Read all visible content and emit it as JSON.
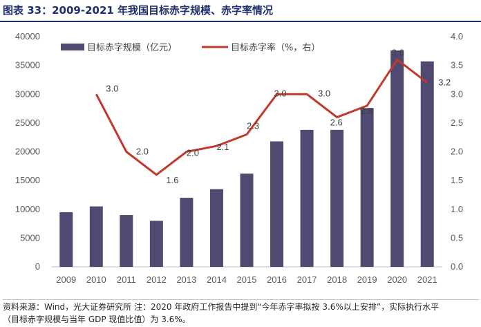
{
  "header": {
    "title": "图表 33：2009-2021 年我国目标赤字规模、赤字率情况"
  },
  "footer": {
    "line1": "资料来源：Wind，光大证券研究所  注：2020 年政府工作报告中提到“今年赤字率拟按 3.6%以上安排”，实际执行水平",
    "line2": "（目标赤字规模与当年 GDP 现值比值）为 3.6%。"
  },
  "colors": {
    "bar": "#4f4a72",
    "line": "#c0392b",
    "title": "#1f2f6b"
  },
  "chart_data": {
    "type": "bar+line",
    "categories": [
      "2009",
      "2010",
      "2011",
      "2012",
      "2013",
      "2014",
      "2015",
      "2016",
      "2017",
      "2018",
      "2019",
      "2020",
      "2021"
    ],
    "series": [
      {
        "name": "目标赤字规模（亿元）",
        "type": "bar",
        "axis": "left",
        "values": [
          9500,
          10500,
          9000,
          8000,
          12000,
          13500,
          16200,
          21800,
          23800,
          23800,
          27600,
          37600,
          35700
        ]
      },
      {
        "name": "目标赤字率（%，右）",
        "type": "line",
        "axis": "right",
        "values": [
          null,
          3.0,
          2.0,
          1.6,
          2.0,
          2.1,
          2.3,
          3.0,
          3.0,
          2.6,
          2.8,
          3.6,
          3.2
        ],
        "labels": [
          "",
          "3.0",
          "2.0",
          "1.6",
          "2.0",
          "2.1",
          "2.3",
          "3.0",
          "3.0",
          "2.6",
          "2.8",
          "3.6",
          "3.2"
        ]
      }
    ],
    "left_axis": {
      "ylim": [
        0,
        40000
      ],
      "ticks": [
        "0",
        "5000",
        "10000",
        "15000",
        "20000",
        "25000",
        "30000",
        "35000",
        "40000"
      ]
    },
    "right_axis": {
      "ylim": [
        0,
        4.0
      ],
      "ticks": [
        "0.0",
        "0.5",
        "1.0",
        "1.5",
        "2.0",
        "2.5",
        "3.0",
        "3.5",
        "4.0"
      ]
    },
    "legend": {
      "placement": "top-left",
      "entries": [
        "目标赤字规模（亿元）",
        "目标赤字率（%，右）"
      ]
    },
    "grid": false
  }
}
